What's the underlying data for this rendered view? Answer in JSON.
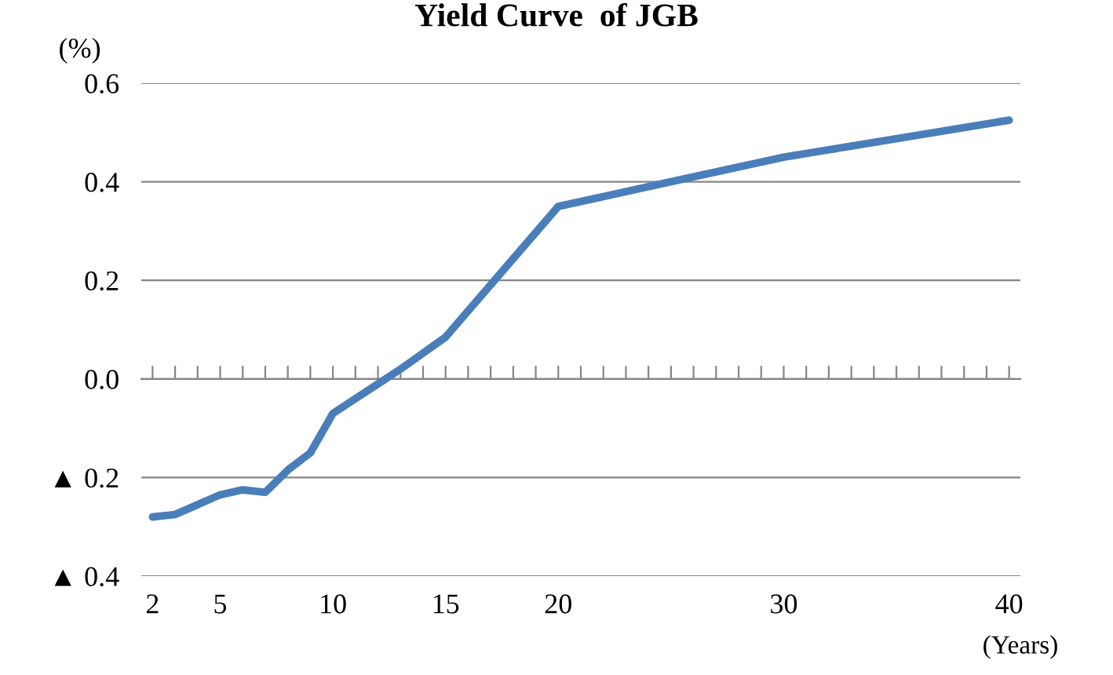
{
  "chart_data": {
    "type": "line",
    "title": "Yield Curve  of JGB",
    "ylabel": "(%)",
    "xlabel": "(Years)",
    "x": [
      2,
      3,
      4,
      5,
      6,
      7,
      8,
      9,
      10,
      12,
      13,
      15,
      20,
      25,
      30,
      40
    ],
    "series": [
      {
        "color": "#4a7ebb",
        "values": [
          -0.28,
          -0.275,
          -0.255,
          -0.235,
          -0.225,
          -0.23,
          -0.185,
          -0.15,
          -0.07,
          -0.01,
          0.02,
          0.085,
          0.35,
          0.4,
          0.45,
          0.525
        ]
      }
    ],
    "xlim": [
      1.5,
      40.5
    ],
    "xticks": [
      2,
      {
        "value": 3,
        "label": null
      },
      {
        "value": 4,
        "label": null
      },
      5,
      {
        "value": 6,
        "label": null
      },
      {
        "value": 7,
        "label": null
      },
      {
        "value": 8,
        "label": null
      },
      {
        "value": 9,
        "label": null
      },
      10,
      {
        "value": 11,
        "label": null
      },
      {
        "value": 12,
        "label": null
      },
      {
        "value": 13,
        "label": null
      },
      {
        "value": 14,
        "label": null
      },
      15,
      {
        "value": 16,
        "label": null
      },
      {
        "value": 17,
        "label": null
      },
      {
        "value": 18,
        "label": null
      },
      {
        "value": 19,
        "label": null
      },
      20,
      {
        "value": 21,
        "label": null
      },
      {
        "value": 22,
        "label": null
      },
      {
        "value": 23,
        "label": null
      },
      {
        "value": 24,
        "label": null
      },
      {
        "value": 25,
        "label": null
      },
      {
        "value": 26,
        "label": null
      },
      {
        "value": 27,
        "label": null
      },
      {
        "value": 28,
        "label": null
      },
      {
        "value": 29,
        "label": null
      },
      30,
      {
        "value": 31,
        "label": null
      },
      {
        "value": 32,
        "label": null
      },
      {
        "value": 33,
        "label": null
      },
      {
        "value": 34,
        "label": null
      },
      {
        "value": 35,
        "label": null
      },
      {
        "value": 36,
        "label": null
      },
      {
        "value": 37,
        "label": null
      },
      {
        "value": 38,
        "label": null
      },
      {
        "value": 39,
        "label": null
      },
      40
    ],
    "ylim": [
      -0.4,
      0.6
    ],
    "yticks": [
      {
        "value": -0.4,
        "label": "▲ 0.4"
      },
      {
        "value": -0.2,
        "label": "▲ 0.2"
      },
      {
        "value": 0,
        "label": "0.0"
      },
      {
        "value": 0.2,
        "label": "0.2"
      },
      {
        "value": 0.4,
        "label": "0.4"
      },
      {
        "value": 0.6,
        "label": "0.6"
      }
    ],
    "grid": "y",
    "legend": false,
    "marker": "none",
    "line_style": "solid"
  }
}
